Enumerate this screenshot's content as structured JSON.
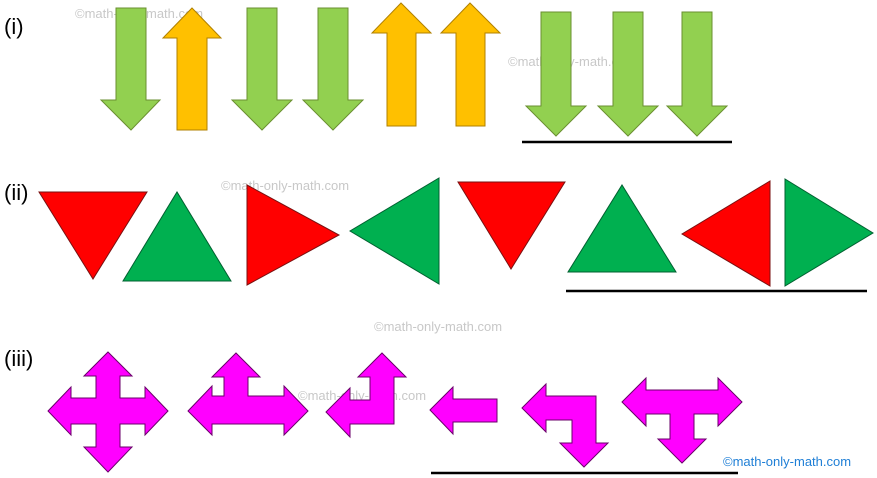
{
  "rows": [
    {
      "label": "(i)"
    },
    {
      "label": "(ii)"
    },
    {
      "label": "(iii)"
    }
  ],
  "watermarks": [
    "©math-only-math.com",
    "©math-only-math.com",
    "©math-only-math.com",
    "©math-only-math.com",
    "©math-only-math.com"
  ],
  "footer_watermark": "©math-only-math.com",
  "colors": {
    "green_arrow": "#92d050",
    "orange_arrow": "#ffc000",
    "red": "#ff0000",
    "green": "#00b050",
    "magenta": "#ff00ff"
  }
}
